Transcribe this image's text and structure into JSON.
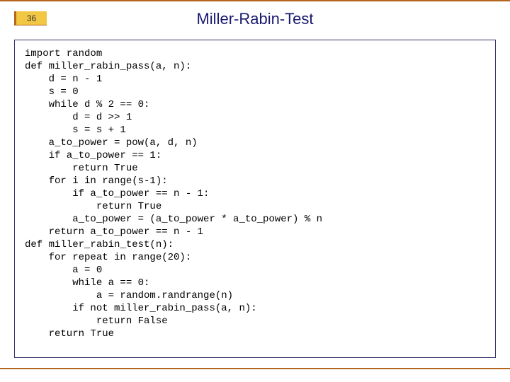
{
  "slide": {
    "page_number": "36",
    "title": "Miller-Rabin-Test",
    "title_color": "#191970",
    "title_fontsize": 22,
    "badge_bg": "#f2c744",
    "badge_border": "#b5651d",
    "accent_color": "#b5651d",
    "frame_border": "#333366",
    "background": "#ffffff"
  },
  "code": {
    "font_family": "Courier New",
    "font_size": 14,
    "line_height": 18,
    "text_color": "#000000",
    "lines": "import random\ndef miller_rabin_pass(a, n):\n    d = n - 1\n    s = 0\n    while d % 2 == 0:\n        d = d >> 1\n        s = s + 1\n    a_to_power = pow(a, d, n)\n    if a_to_power == 1:\n        return True\n    for i in range(s-1):\n        if a_to_power == n - 1:\n            return True\n        a_to_power = (a_to_power * a_to_power) % n\n    return a_to_power == n - 1\ndef miller_rabin_test(n):\n    for repeat in range(20):\n        a = 0\n        while a == 0:\n            a = random.randrange(n)\n        if not miller_rabin_pass(a, n):\n            return False\n    return True"
  }
}
